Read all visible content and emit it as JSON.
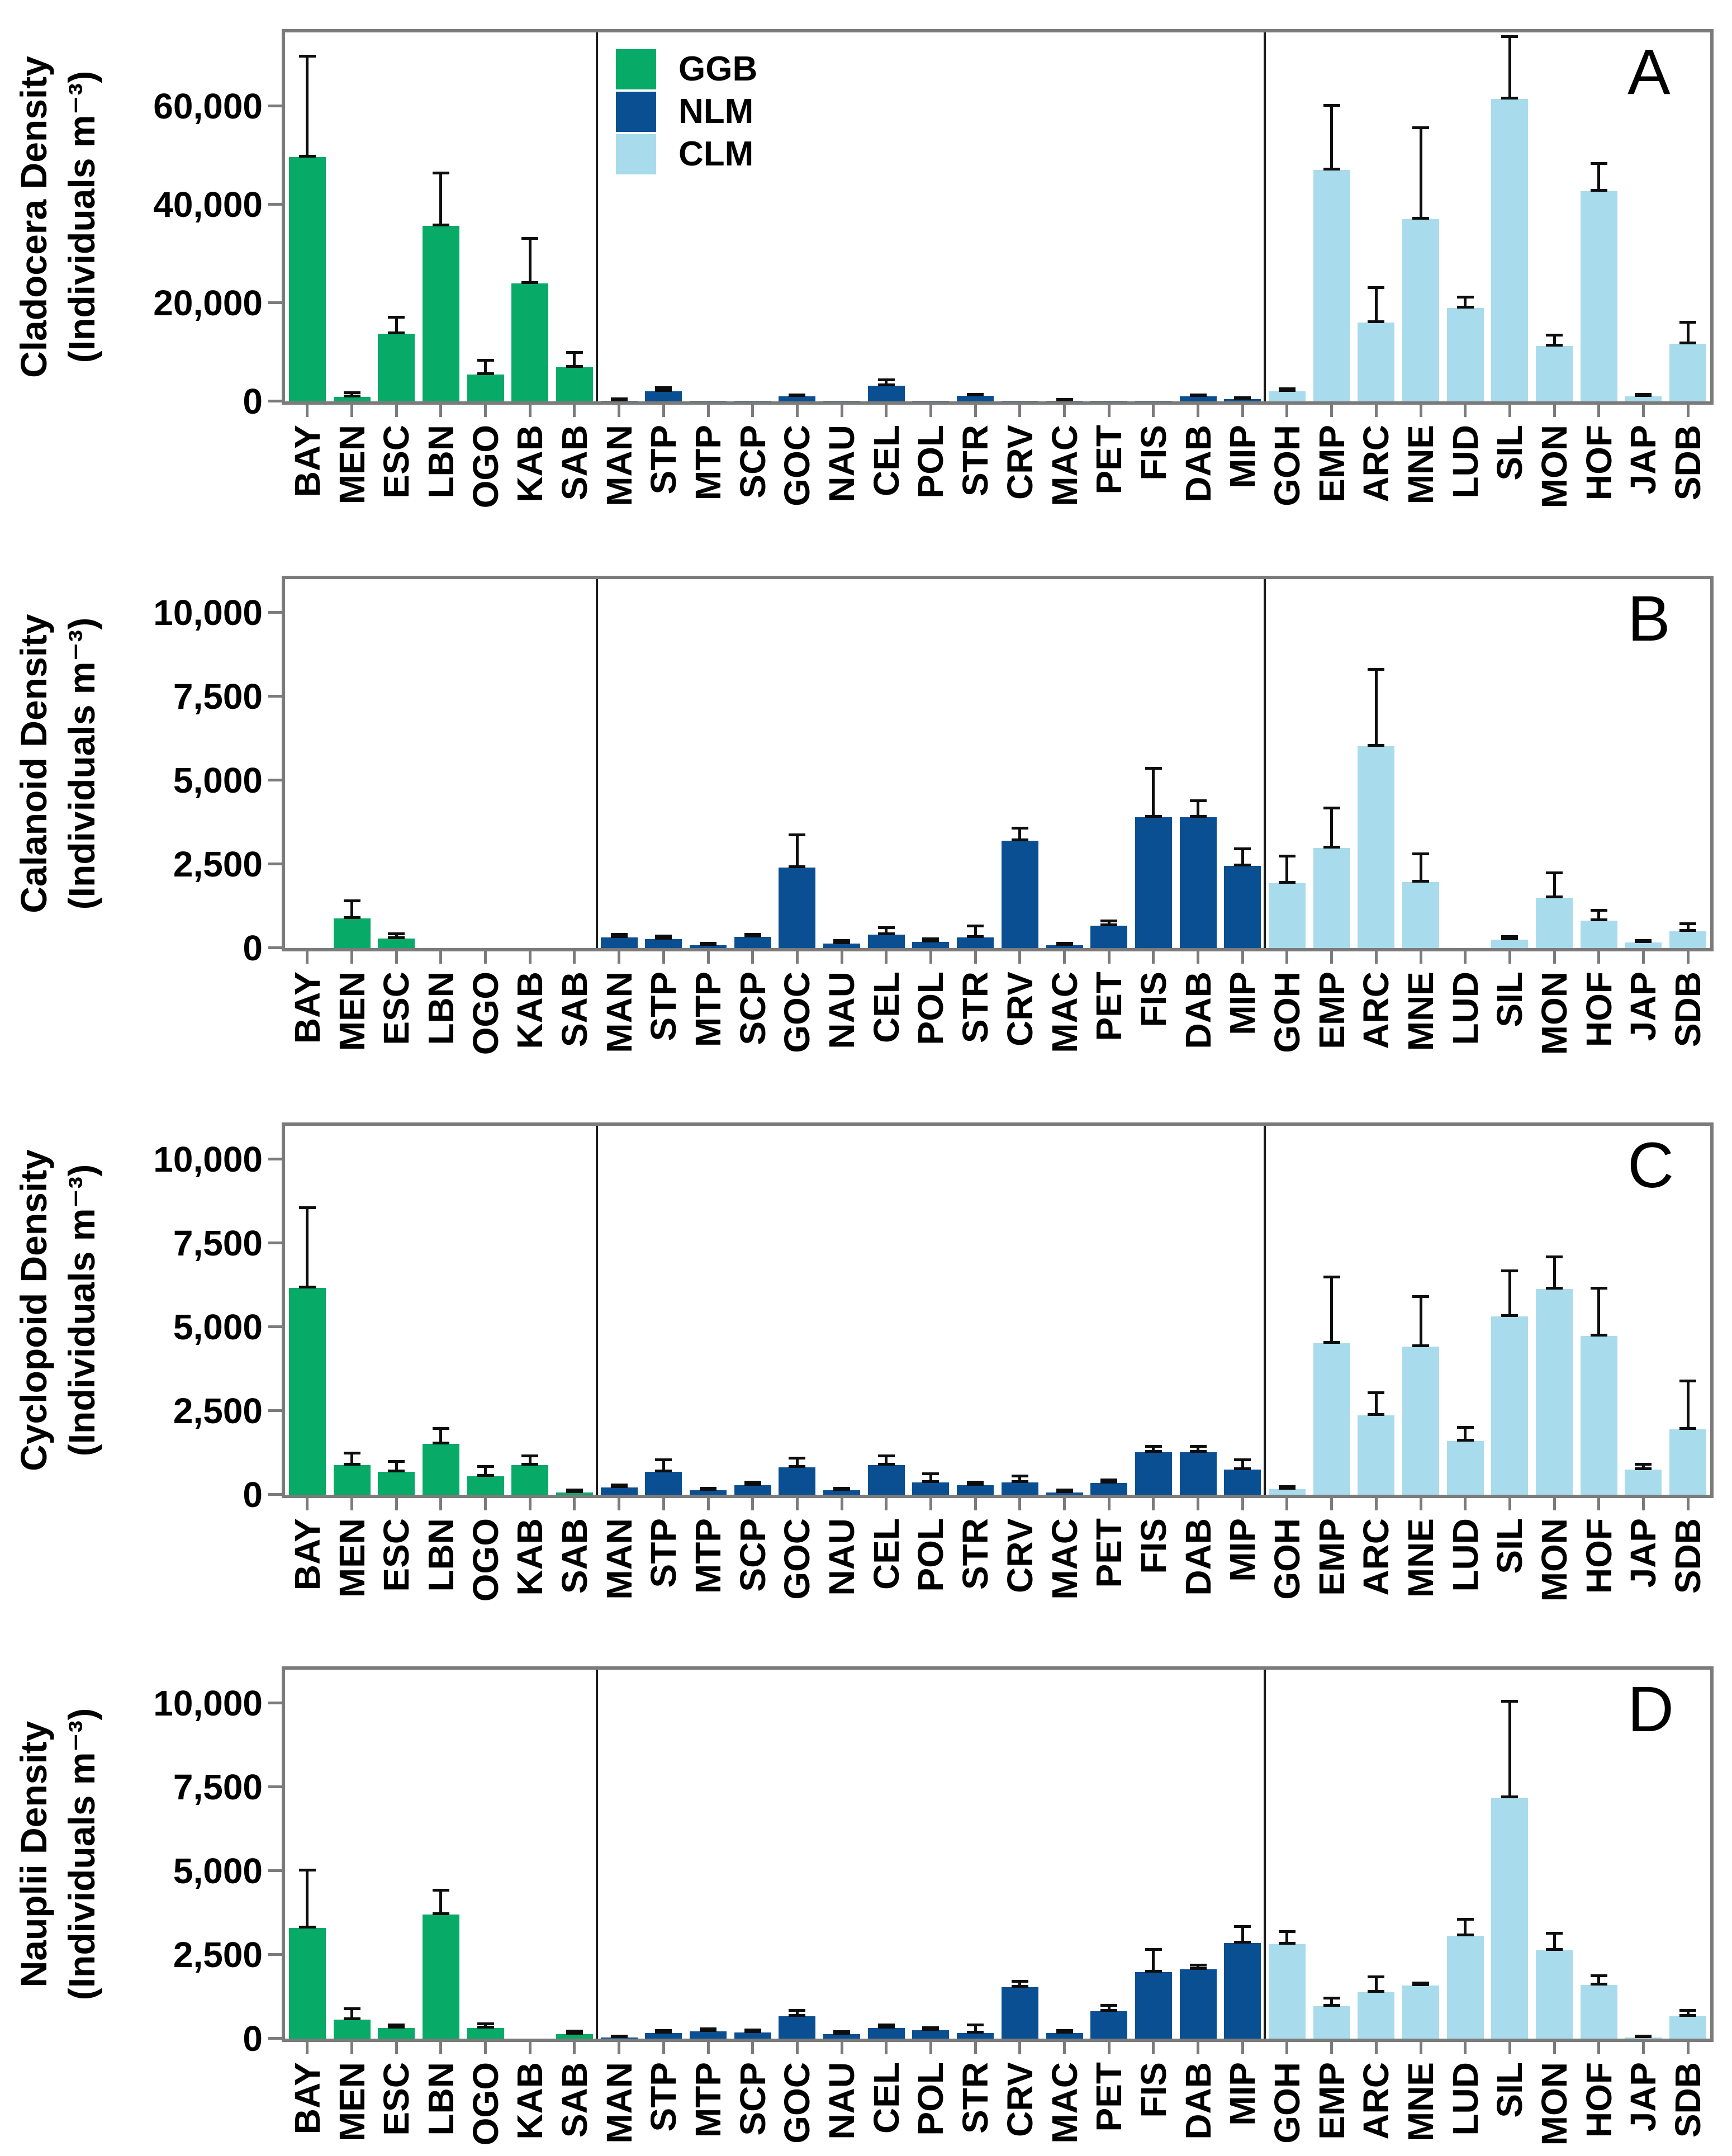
{
  "legend": {
    "items": [
      {
        "label": "GGB",
        "color": "#07aa67"
      },
      {
        "label": "NLM",
        "color": "#0b4f93"
      },
      {
        "label": "CLM",
        "color": "#a8dcec"
      }
    ]
  },
  "chart_data": {
    "type": "bar",
    "grid": "off",
    "legend_position": "inside panel A, top of NLM section",
    "categories": [
      "BAY",
      "MEN",
      "ESC",
      "LBN",
      "OGO",
      "KAB",
      "SAB",
      "MAN",
      "STP",
      "MTP",
      "SCP",
      "GOC",
      "NAU",
      "CEL",
      "POL",
      "STR",
      "CRV",
      "MAC",
      "PET",
      "FIS",
      "DAB",
      "MIP",
      "GOH",
      "EMP",
      "ARC",
      "MNE",
      "LUD",
      "SIL",
      "MON",
      "HOF",
      "JAP",
      "SDB"
    ],
    "groups": [
      {
        "name": "GGB",
        "color": "#07aa67",
        "count": 7
      },
      {
        "name": "NLM",
        "color": "#0b4f93",
        "count": 15
      },
      {
        "name": "CLM",
        "color": "#a8dcec",
        "count": 10
      }
    ],
    "error_bar_color": "#0d0d0d",
    "axis_color": "#7b7b7b",
    "panels": [
      {
        "panel_label": "A",
        "ylabel": [
          "Cladocera Density",
          "(Individuals m⁻³)"
        ],
        "ylim": [
          0,
          75000
        ],
        "yticks": [
          {
            "value": 0,
            "label": "0"
          },
          {
            "value": 20000,
            "label": "20,000"
          },
          {
            "value": 40000,
            "label": "40,000"
          },
          {
            "value": 60000,
            "label": "60,000"
          }
        ],
        "values": [
          49700,
          950,
          13800,
          35700,
          5500,
          24000,
          6900,
          150,
          2000,
          60,
          60,
          1000,
          60,
          3200,
          60,
          1100,
          60,
          150,
          60,
          60,
          1000,
          500,
          2100,
          47000,
          16000,
          37000,
          19000,
          61500,
          11300,
          42700,
          1000,
          11700
        ],
        "errors_plus": [
          20300,
          650,
          3100,
          10500,
          2700,
          8900,
          2900,
          150,
          600,
          0,
          0,
          150,
          0,
          1000,
          0,
          150,
          0,
          100,
          0,
          0,
          100,
          100,
          300,
          13000,
          7000,
          18500,
          2000,
          12500,
          2000,
          5500,
          200,
          4200
        ]
      },
      {
        "panel_label": "B",
        "ylabel": [
          "Calanoid Density",
          "(Individuals m⁻³)"
        ],
        "ylim": [
          0,
          11000
        ],
        "yticks": [
          {
            "value": 0,
            "label": "0"
          },
          {
            "value": 2500,
            "label": "2,500"
          },
          {
            "value": 5000,
            "label": "5,000"
          },
          {
            "value": 7500,
            "label": "7,500"
          },
          {
            "value": 10000,
            "label": "10,000"
          }
        ],
        "values": [
          0,
          890,
          280,
          0,
          0,
          0,
          0,
          320,
          270,
          85,
          330,
          2400,
          140,
          400,
          190,
          320,
          3200,
          85,
          665,
          3900,
          3900,
          2450,
          1930,
          2990,
          6020,
          1965,
          0,
          250,
          1505,
          815,
          160,
          495
        ],
        "errors_plus": [
          0,
          500,
          120,
          0,
          0,
          0,
          0,
          60,
          60,
          30,
          60,
          950,
          60,
          180,
          60,
          320,
          350,
          30,
          115,
          1430,
          460,
          480,
          790,
          1160,
          2260,
          825,
          0,
          60,
          710,
          290,
          40,
          205
        ]
      },
      {
        "panel_label": "C",
        "ylabel": [
          "Cyclopoid Density",
          "(Individuals m⁻³)"
        ],
        "ylim": [
          0,
          11000
        ],
        "yticks": [
          {
            "value": 0,
            "label": "0"
          },
          {
            "value": 2500,
            "label": "2,500"
          },
          {
            "value": 5000,
            "label": "5,000"
          },
          {
            "value": 7500,
            "label": "7,500"
          },
          {
            "value": 10000,
            "label": "10,000"
          }
        ],
        "values": [
          6170,
          880,
          690,
          1520,
          550,
          880,
          75,
          210,
          690,
          130,
          290,
          820,
          130,
          880,
          370,
          290,
          370,
          75,
          350,
          1275,
          1275,
          745,
          160,
          4520,
          2370,
          4410,
          1600,
          5320,
          6140,
          4730,
          745,
          1950
        ],
        "errors_plus": [
          2370,
          340,
          270,
          430,
          270,
          260,
          40,
          60,
          320,
          40,
          60,
          240,
          40,
          260,
          235,
          60,
          160,
          40,
          60,
          140,
          140,
          265,
          60,
          1940,
          640,
          1470,
          390,
          1330,
          930,
          1410,
          135,
          1420
        ]
      },
      {
        "panel_label": "D",
        "ylabel": [
          "Nauplii Density",
          "(Individuals m⁻³)"
        ],
        "ylim": [
          0,
          11000
        ],
        "yticks": [
          {
            "value": 0,
            "label": "0"
          },
          {
            "value": 2500,
            "label": "2,500"
          },
          {
            "value": 5000,
            "label": "5,000"
          },
          {
            "value": 7500,
            "label": "7,500"
          },
          {
            "value": 10000,
            "label": "10,000"
          }
        ],
        "values": [
          3300,
          570,
          320,
          3700,
          320,
          0,
          140,
          30,
          160,
          215,
          190,
          675,
          140,
          320,
          250,
          160,
          1530,
          160,
          815,
          1990,
          2070,
          2850,
          2820,
          965,
          1390,
          1585,
          3065,
          7180,
          2640,
          1600,
          30,
          675
        ],
        "errors_plus": [
          1700,
          290,
          60,
          700,
          90,
          0,
          60,
          20,
          50,
          50,
          50,
          140,
          40,
          60,
          50,
          225,
          160,
          50,
          150,
          650,
          105,
          470,
          350,
          215,
          430,
          55,
          475,
          2850,
          470,
          250,
          20,
          140
        ]
      }
    ]
  }
}
